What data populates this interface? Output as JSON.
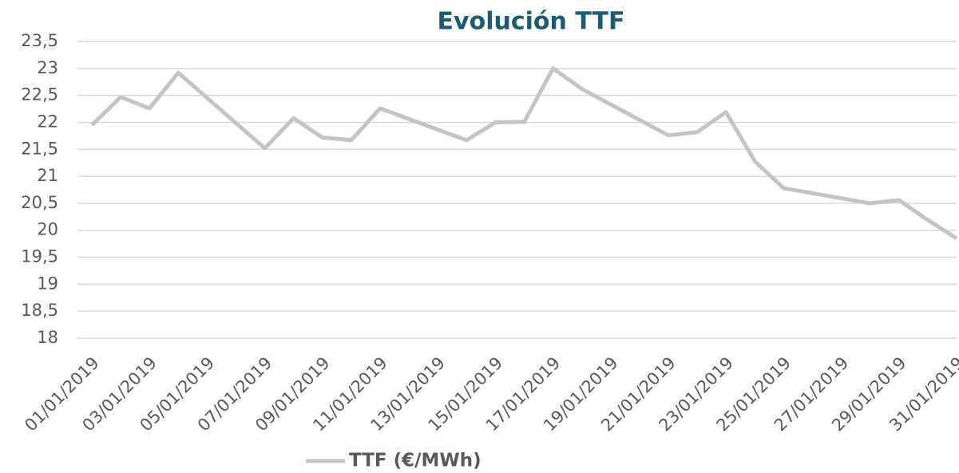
{
  "chart_data": {
    "type": "line",
    "title": "Evolución TTF",
    "x": [
      "01/01/2019",
      "02/01/2019",
      "03/01/2019",
      "04/01/2019",
      "07/01/2019",
      "08/01/2019",
      "09/01/2019",
      "10/01/2019",
      "11/01/2019",
      "14/01/2019",
      "15/01/2019",
      "16/01/2019",
      "17/01/2019",
      "18/01/2019",
      "21/01/2019",
      "22/01/2019",
      "23/01/2019",
      "24/01/2019",
      "25/01/2019",
      "28/01/2019",
      "29/01/2019",
      "30/01/2019",
      "31/01/2019"
    ],
    "series": [
      {
        "name": "TTF (€/MWh)",
        "color": "#c4c4c4",
        "values": [
          21.95,
          22.47,
          22.26,
          22.92,
          21.52,
          22.08,
          21.72,
          21.67,
          22.26,
          21.67,
          22.0,
          22.01,
          23.0,
          22.62,
          21.76,
          21.82,
          22.19,
          21.28,
          20.78,
          20.5,
          20.56,
          20.19,
          19.85
        ]
      }
    ],
    "xlim": [
      "01/01/2019",
      "31/01/2019"
    ],
    "xticks": [
      "01/01/2019",
      "03/01/2019",
      "05/01/2019",
      "07/01/2019",
      "09/01/2019",
      "11/01/2019",
      "13/01/2019",
      "15/01/2019",
      "17/01/2019",
      "19/01/2019",
      "21/01/2019",
      "23/01/2019",
      "25/01/2019",
      "27/01/2019",
      "29/01/2019",
      "31/01/2019"
    ],
    "ylim": [
      18,
      23.5
    ],
    "yticks": [
      18,
      {
        "value": 18.5,
        "label": "18,5"
      },
      19,
      {
        "value": 19.5,
        "label": "19,5"
      },
      20,
      {
        "value": 20.5,
        "label": "20,5"
      },
      21,
      {
        "value": 21.5,
        "label": "21,5"
      },
      22,
      {
        "value": 22.5,
        "label": "22,5"
      },
      23,
      {
        "value": 23.5,
        "label": "23,5"
      }
    ],
    "grid": true,
    "legend": "bottom"
  }
}
